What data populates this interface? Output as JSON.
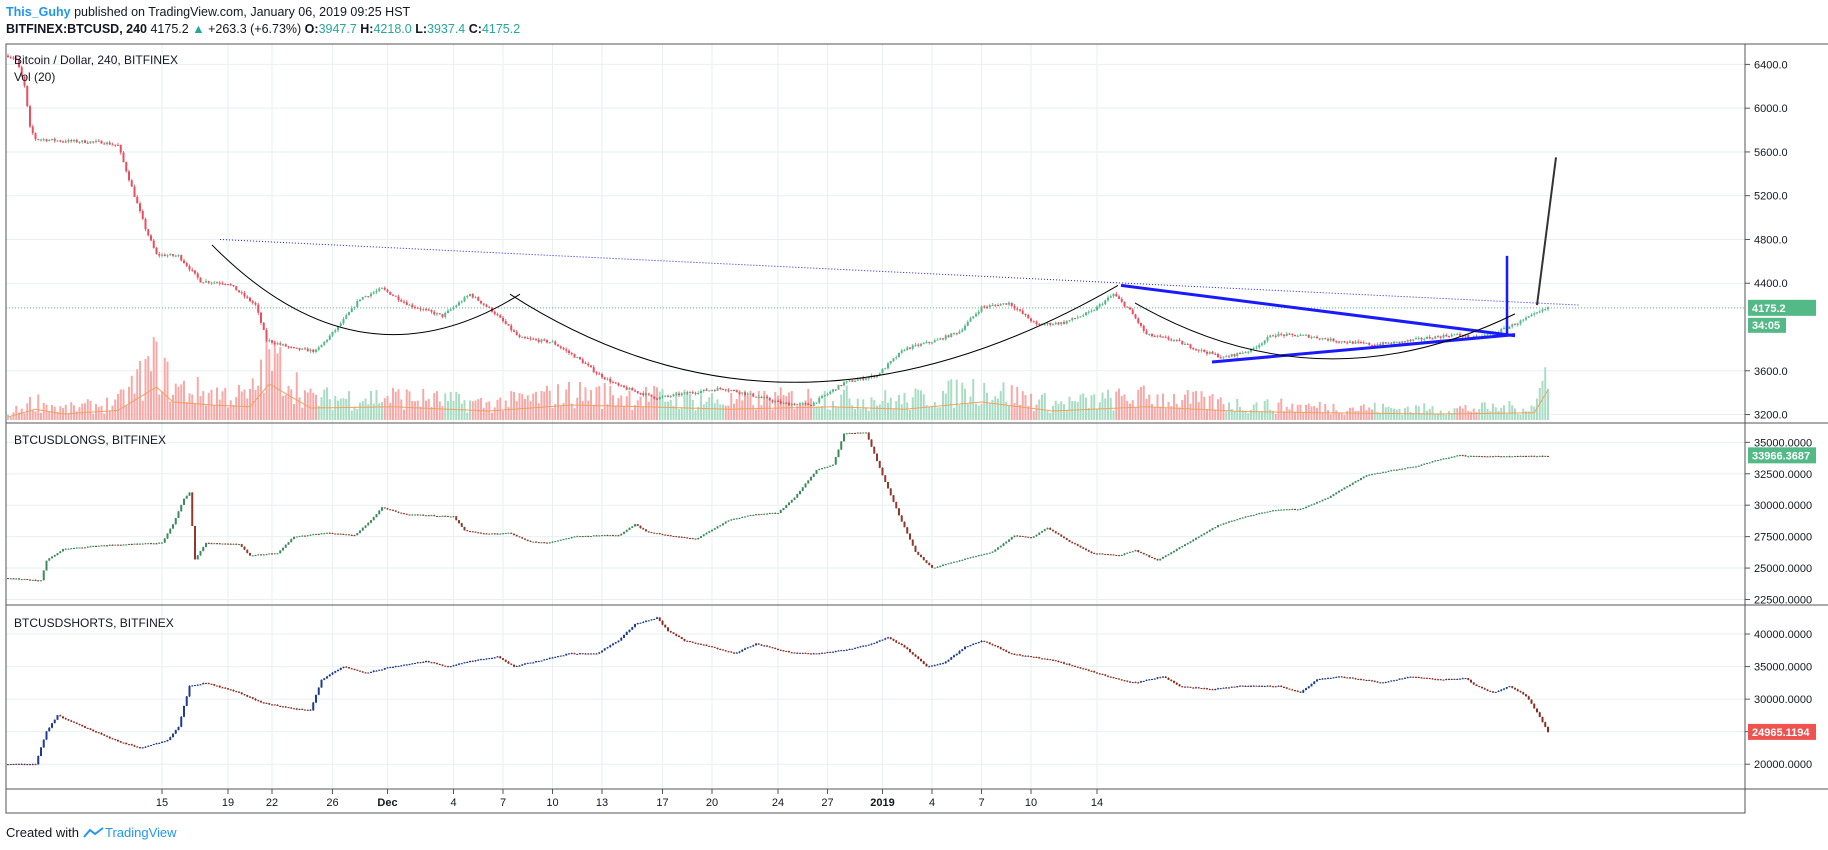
{
  "header": {
    "author": "This_Guhy",
    "published_text": "published on TradingView.com, January 06, 2019 09:25 HST",
    "symbol": "BITFINEX:BTCUSD, 240",
    "last": "4175.2",
    "change": "+263.3 (+6.73%)",
    "o_label": "O:",
    "o_value": "3947.7",
    "h_label": "H:",
    "h_value": "4218.0",
    "l_label": "L:",
    "l_value": "3937.4",
    "c_label": "C:",
    "c_value": "4175.2",
    "up_arrow": "▲"
  },
  "footer": {
    "created_with": "Created with",
    "brand": "TradingView",
    "icon": "tradingview-logo-icon"
  },
  "colors": {
    "up": "#53b987",
    "down": "#eb4d5c",
    "volume_up": "#a9dcc3",
    "volume_down": "#f7a9a7",
    "longs_up": "#3d8b5b",
    "longs_down": "#8b3a2b",
    "shorts_up": "#1e3c8b",
    "shorts_down": "#8b2c1e",
    "drawing_blue": "#1a1aff",
    "grid": "#e9eff2",
    "price_tag": "#53b987",
    "shorts_tag": "#ef5350"
  },
  "chart_data": [
    {
      "type": "candlestick",
      "title": "Bitcoin / Dollar, 240, BITFINEX",
      "indicator": "Vol (20)",
      "y_ticks": [
        "6400.0",
        "6000.0",
        "5600.0",
        "5200.0",
        "4800.0",
        "4400.0",
        "3600.0",
        "3200.0"
      ],
      "ylim": [
        3150,
        6550
      ],
      "last_price": "4175.2",
      "countdown": "34:05",
      "x_ticks": [
        "15",
        "19",
        "22",
        "26",
        "Dec",
        "4",
        "7",
        "10",
        "13",
        "17",
        "20",
        "24",
        "27",
        "2019",
        "4",
        "7",
        "10",
        "14"
      ],
      "close_path": [
        [
          0,
          6480
        ],
        [
          3,
          6450
        ],
        [
          6,
          6200
        ],
        [
          8,
          5820
        ],
        [
          10,
          5720
        ],
        [
          20,
          5700
        ],
        [
          34,
          5690
        ],
        [
          40,
          5660
        ],
        [
          46,
          5200
        ],
        [
          50,
          4900
        ],
        [
          54,
          4660
        ],
        [
          62,
          4650
        ],
        [
          70,
          4420
        ],
        [
          80,
          4400
        ],
        [
          90,
          4200
        ],
        [
          94,
          3880
        ],
        [
          104,
          3800
        ],
        [
          112,
          3780
        ],
        [
          120,
          4000
        ],
        [
          128,
          4260
        ],
        [
          136,
          4350
        ],
        [
          146,
          4200
        ],
        [
          158,
          4100
        ],
        [
          168,
          4300
        ],
        [
          176,
          4150
        ],
        [
          186,
          3900
        ],
        [
          198,
          3860
        ],
        [
          208,
          3700
        ],
        [
          214,
          3580
        ],
        [
          222,
          3460
        ],
        [
          236,
          3350
        ],
        [
          248,
          3400
        ],
        [
          260,
          3440
        ],
        [
          270,
          3380
        ],
        [
          282,
          3300
        ],
        [
          292,
          3290
        ],
        [
          304,
          3490
        ],
        [
          316,
          3560
        ],
        [
          326,
          3800
        ],
        [
          338,
          3880
        ],
        [
          346,
          3960
        ],
        [
          354,
          4180
        ],
        [
          364,
          4220
        ],
        [
          374,
          4020
        ],
        [
          384,
          4040
        ],
        [
          394,
          4140
        ],
        [
          402,
          4300
        ],
        [
          408,
          4150
        ],
        [
          414,
          3930
        ],
        [
          424,
          3880
        ],
        [
          432,
          3800
        ],
        [
          442,
          3720
        ],
        [
          452,
          3790
        ],
        [
          460,
          3930
        ],
        [
          472,
          3920
        ],
        [
          484,
          3870
        ],
        [
          496,
          3840
        ],
        [
          506,
          3860
        ],
        [
          516,
          3900
        ],
        [
          526,
          3930
        ],
        [
          534,
          3900
        ],
        [
          542,
          3960
        ],
        [
          550,
          4050
        ],
        [
          560,
          4175
        ]
      ],
      "volume_ratio_path": [
        [
          0,
          0.05
        ],
        [
          10,
          0.18
        ],
        [
          20,
          0.1
        ],
        [
          40,
          0.16
        ],
        [
          54,
          0.55
        ],
        [
          60,
          0.3
        ],
        [
          74,
          0.25
        ],
        [
          88,
          0.22
        ],
        [
          95,
          0.6
        ],
        [
          110,
          0.2
        ],
        [
          140,
          0.22
        ],
        [
          175,
          0.15
        ],
        [
          205,
          0.25
        ],
        [
          232,
          0.22
        ],
        [
          262,
          0.18
        ],
        [
          300,
          0.22
        ],
        [
          326,
          0.18
        ],
        [
          354,
          0.3
        ],
        [
          380,
          0.15
        ],
        [
          414,
          0.22
        ],
        [
          450,
          0.14
        ],
        [
          480,
          0.12
        ],
        [
          520,
          0.1
        ],
        [
          555,
          0.12
        ],
        [
          560,
          0.5
        ]
      ]
    },
    {
      "type": "candlestick",
      "title": "BTCUSDLONGS, BITFINEX",
      "y_ticks": [
        "35000.0000",
        "32500.0000",
        "30000.0000",
        "27500.0000",
        "25000.0000",
        "22500.0000"
      ],
      "ylim": [
        22300,
        36300
      ],
      "last_price": "33966.3687",
      "close_path": [
        [
          0,
          24200
        ],
        [
          12,
          24000
        ],
        [
          14,
          25600
        ],
        [
          20,
          26500
        ],
        [
          34,
          26800
        ],
        [
          56,
          27000
        ],
        [
          60,
          28500
        ],
        [
          64,
          30500
        ],
        [
          66,
          31000
        ],
        [
          68,
          25700
        ],
        [
          72,
          27000
        ],
        [
          84,
          26900
        ],
        [
          88,
          26000
        ],
        [
          98,
          26200
        ],
        [
          104,
          27500
        ],
        [
          116,
          27800
        ],
        [
          126,
          27600
        ],
        [
          132,
          28800
        ],
        [
          136,
          29800
        ],
        [
          144,
          29300
        ],
        [
          152,
          29200
        ],
        [
          162,
          29100
        ],
        [
          166,
          28000
        ],
        [
          174,
          27700
        ],
        [
          182,
          27800
        ],
        [
          190,
          27100
        ],
        [
          196,
          27000
        ],
        [
          206,
          27500
        ],
        [
          214,
          27600
        ],
        [
          222,
          27600
        ],
        [
          228,
          28500
        ],
        [
          232,
          27900
        ],
        [
          240,
          27600
        ],
        [
          250,
          27300
        ],
        [
          262,
          28800
        ],
        [
          272,
          29300
        ],
        [
          280,
          29400
        ],
        [
          286,
          30600
        ],
        [
          294,
          32800
        ],
        [
          300,
          33200
        ],
        [
          304,
          35700
        ],
        [
          312,
          35800
        ],
        [
          318,
          32400
        ],
        [
          324,
          29200
        ],
        [
          330,
          26300
        ],
        [
          336,
          25000
        ],
        [
          346,
          25600
        ],
        [
          358,
          26300
        ],
        [
          366,
          27600
        ],
        [
          372,
          27400
        ],
        [
          378,
          28200
        ],
        [
          386,
          27100
        ],
        [
          394,
          26200
        ],
        [
          404,
          26000
        ],
        [
          410,
          26400
        ],
        [
          418,
          25600
        ],
        [
          428,
          26900
        ],
        [
          440,
          28400
        ],
        [
          450,
          29100
        ],
        [
          460,
          29600
        ],
        [
          470,
          29700
        ],
        [
          480,
          30600
        ],
        [
          486,
          31400
        ],
        [
          494,
          32400
        ],
        [
          504,
          32800
        ],
        [
          512,
          33100
        ],
        [
          520,
          33600
        ],
        [
          528,
          34000
        ],
        [
          530,
          33900
        ]
      ]
    },
    {
      "type": "candlestick",
      "title": "BTCUSDSHORTS, BITFINEX",
      "y_ticks": [
        "40000.0000",
        "35000.0000",
        "30000.0000",
        "25000.0000",
        "20000.0000"
      ],
      "ylim": [
        16500,
        44000
      ],
      "last_price": "24965.1194",
      "close_path": [
        [
          0,
          20000
        ],
        [
          10,
          20000
        ],
        [
          14,
          25000
        ],
        [
          18,
          27500
        ],
        [
          26,
          26000
        ],
        [
          40,
          23500
        ],
        [
          48,
          22500
        ],
        [
          58,
          23700
        ],
        [
          62,
          25800
        ],
        [
          66,
          32000
        ],
        [
          72,
          32500
        ],
        [
          84,
          31000
        ],
        [
          92,
          29500
        ],
        [
          104,
          28500
        ],
        [
          110,
          28300
        ],
        [
          114,
          33000
        ],
        [
          122,
          35000
        ],
        [
          130,
          34000
        ],
        [
          140,
          35000
        ],
        [
          152,
          35800
        ],
        [
          160,
          35000
        ],
        [
          168,
          35800
        ],
        [
          178,
          36500
        ],
        [
          184,
          35000
        ],
        [
          192,
          35800
        ],
        [
          204,
          37000
        ],
        [
          214,
          37000
        ],
        [
          222,
          39000
        ],
        [
          228,
          41500
        ],
        [
          236,
          42500
        ],
        [
          240,
          40500
        ],
        [
          246,
          39000
        ],
        [
          256,
          38000
        ],
        [
          264,
          37000
        ],
        [
          272,
          38500
        ],
        [
          284,
          37200
        ],
        [
          294,
          37000
        ],
        [
          304,
          37500
        ],
        [
          314,
          38500
        ],
        [
          320,
          39500
        ],
        [
          326,
          38000
        ],
        [
          334,
          35000
        ],
        [
          340,
          35500
        ],
        [
          348,
          38000
        ],
        [
          354,
          39000
        ],
        [
          360,
          38000
        ],
        [
          364,
          37000
        ],
        [
          372,
          36500
        ],
        [
          380,
          36000
        ],
        [
          388,
          35000
        ],
        [
          396,
          34000
        ],
        [
          404,
          33000
        ],
        [
          410,
          32500
        ],
        [
          420,
          33500
        ],
        [
          426,
          32000
        ],
        [
          438,
          31500
        ],
        [
          448,
          32000
        ],
        [
          456,
          32000
        ],
        [
          462,
          32000
        ],
        [
          470,
          31000
        ],
        [
          476,
          33000
        ],
        [
          484,
          33500
        ],
        [
          492,
          33000
        ],
        [
          500,
          32500
        ],
        [
          510,
          33500
        ],
        [
          520,
          33000
        ],
        [
          530,
          33200
        ],
        [
          534,
          32000
        ],
        [
          540,
          31000
        ],
        [
          546,
          32000
        ],
        [
          552,
          30500
        ],
        [
          556,
          28000
        ],
        [
          560,
          25000
        ]
      ]
    }
  ],
  "drawings": {
    "dotted_resistance": "dotted blue trendline",
    "triangle": "symmetrical triangle",
    "cups": "cup arcs",
    "projection": "projection line"
  }
}
